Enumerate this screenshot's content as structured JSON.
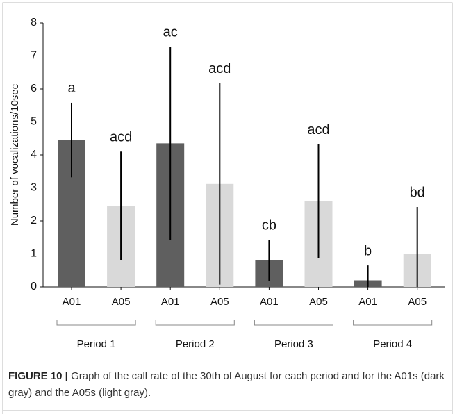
{
  "chart_data": {
    "type": "bar",
    "y_label": "Number of vocalizations/10sec",
    "categories": [
      "A01",
      "A05",
      "A01",
      "A05",
      "A01",
      "A05",
      "A01",
      "A05"
    ],
    "groups": [
      "Period 1",
      "Period 2",
      "Period 3",
      "Period 4"
    ],
    "values": [
      4.45,
      2.45,
      4.35,
      3.12,
      0.8,
      2.6,
      0.2,
      1.0
    ],
    "errors": [
      1.13,
      1.65,
      2.93,
      3.05,
      0.63,
      1.72,
      0.45,
      1.42
    ],
    "annotations": [
      "a",
      "acd",
      "ac",
      "acd",
      "cb",
      "acd",
      "b",
      "bd"
    ],
    "colors": [
      "#5f5f5f",
      "#d9d9d9",
      "#5f5f5f",
      "#d9d9d9",
      "#5f5f5f",
      "#d9d9d9",
      "#5f5f5f",
      "#d9d9d9"
    ],
    "ylim": [
      0,
      8
    ],
    "yticks": [
      0,
      1,
      2,
      3,
      4,
      5,
      6,
      7,
      8
    ]
  },
  "caption": {
    "label": "FIGURE 10 |",
    "text": "Graph of the call rate of the 30th of August for each period and for the A01s (dark gray) and the A05s (light gray)."
  }
}
